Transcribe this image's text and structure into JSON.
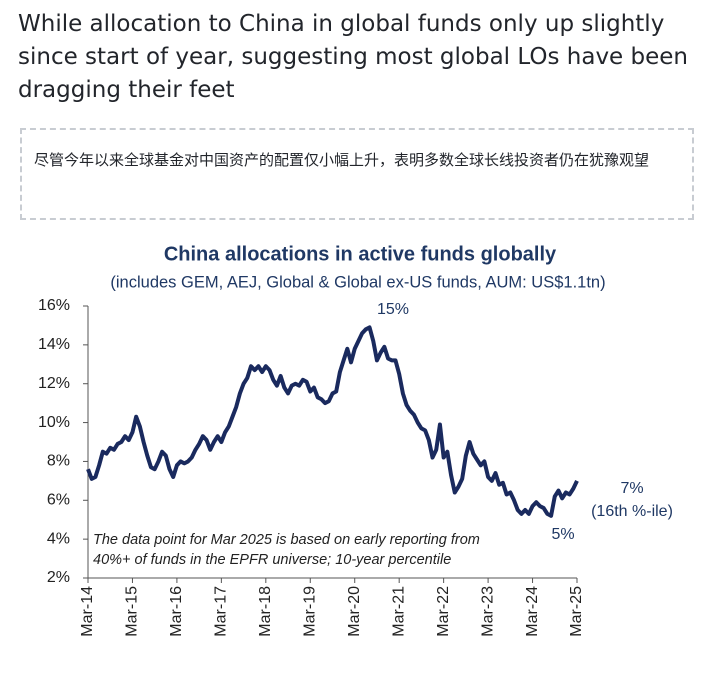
{
  "headline": "While allocation to China in global funds only up slightly since start of year, suggesting most global LOs have been dragging their feet",
  "note": "尽管今年以来全球基金对中国资产的配置仅小幅上升，表明多数全球长线投资者仍在犹豫观望",
  "chart_data": {
    "type": "line",
    "title": "China allocations in active funds globally",
    "subtitle": "(includes GEM, AEJ, Global & Global ex-US  funds, AUM:  US$1.1tn)",
    "categories": [
      "Mar-14",
      null,
      null,
      null,
      null,
      null,
      null,
      null,
      null,
      null,
      null,
      null,
      "Mar-15",
      null,
      null,
      null,
      null,
      null,
      null,
      null,
      null,
      null,
      null,
      null,
      "Mar-16",
      null,
      null,
      null,
      null,
      null,
      null,
      null,
      null,
      null,
      null,
      null,
      "Mar-17",
      null,
      null,
      null,
      null,
      null,
      null,
      null,
      null,
      null,
      null,
      null,
      "Mar-18",
      null,
      null,
      null,
      null,
      null,
      null,
      null,
      null,
      null,
      null,
      null,
      "Mar-19",
      null,
      null,
      null,
      null,
      null,
      null,
      null,
      null,
      null,
      null,
      null,
      "Mar-20",
      null,
      null,
      null,
      null,
      null,
      null,
      null,
      null,
      null,
      null,
      null,
      "Mar-21",
      null,
      null,
      null,
      null,
      null,
      null,
      null,
      null,
      null,
      null,
      null,
      "Mar-22",
      null,
      null,
      null,
      null,
      null,
      null,
      null,
      null,
      null,
      null,
      null,
      "Mar-23",
      null,
      null,
      null,
      null,
      null,
      null,
      null,
      null,
      null,
      null,
      null,
      "Mar-24",
      null,
      null,
      null,
      null,
      null,
      null,
      null,
      null,
      null,
      null,
      null,
      "Mar-25"
    ],
    "series": [
      {
        "name": "China allocation",
        "color": "#1a2a5e",
        "values": [
          7.6,
          7.1,
          7.2,
          7.8,
          8.5,
          8.4,
          8.7,
          8.6,
          8.9,
          9.0,
          9.3,
          9.1,
          9.5,
          10.3,
          9.8,
          9.0,
          8.3,
          7.7,
          7.6,
          8.0,
          8.5,
          8.3,
          7.6,
          7.2,
          7.8,
          8.0,
          7.9,
          8.0,
          8.2,
          8.6,
          8.9,
          9.3,
          9.1,
          8.6,
          9.0,
          9.3,
          9.0,
          9.5,
          9.8,
          10.3,
          10.8,
          11.5,
          12.0,
          12.3,
          12.9,
          12.7,
          12.9,
          12.6,
          12.9,
          12.7,
          12.2,
          11.9,
          12.4,
          11.8,
          11.5,
          11.9,
          12.0,
          11.9,
          12.2,
          12.1,
          11.6,
          11.8,
          11.3,
          11.2,
          11.0,
          11.1,
          11.5,
          11.6,
          12.6,
          13.2,
          13.8,
          13.1,
          13.8,
          14.2,
          14.6,
          14.8,
          14.9,
          14.2,
          13.2,
          13.6,
          13.9,
          13.3,
          13.2,
          13.2,
          12.5,
          11.5,
          10.9,
          10.6,
          10.4,
          10.0,
          9.7,
          9.6,
          9.1,
          8.2,
          8.6,
          9.9,
          8.2,
          8.5,
          7.3,
          6.4,
          6.7,
          7.1,
          8.3,
          9.0,
          8.4,
          8.1,
          7.8,
          8.0,
          7.2,
          7.0,
          7.4,
          6.8,
          6.9,
          6.3,
          6.4,
          6.0,
          5.5,
          5.3,
          5.5,
          5.3,
          5.7,
          5.9,
          5.7,
          5.6,
          5.3,
          5.2,
          6.2,
          6.5,
          6.1,
          6.4,
          6.3,
          6.6,
          7.0
        ]
      }
    ],
    "ylim": [
      2,
      16
    ],
    "yticks": [
      {
        "value": 2,
        "label": "2%"
      },
      {
        "value": 4,
        "label": "4%"
      },
      {
        "value": 6,
        "label": "6%"
      },
      {
        "value": 8,
        "label": "8%"
      },
      {
        "value": 10,
        "label": "10%"
      },
      {
        "value": 12,
        "label": "12%"
      },
      {
        "value": 14,
        "label": "14%"
      },
      {
        "value": 16,
        "label": "16%"
      }
    ],
    "grid": false,
    "annotations": [
      "15%",
      "5%",
      "7%",
      "(16th %-ile)",
      "The data point for Mar 2025 is based on early reporting from",
      "40%+ of funds in the EPFR universe; 10-year percentile"
    ]
  }
}
